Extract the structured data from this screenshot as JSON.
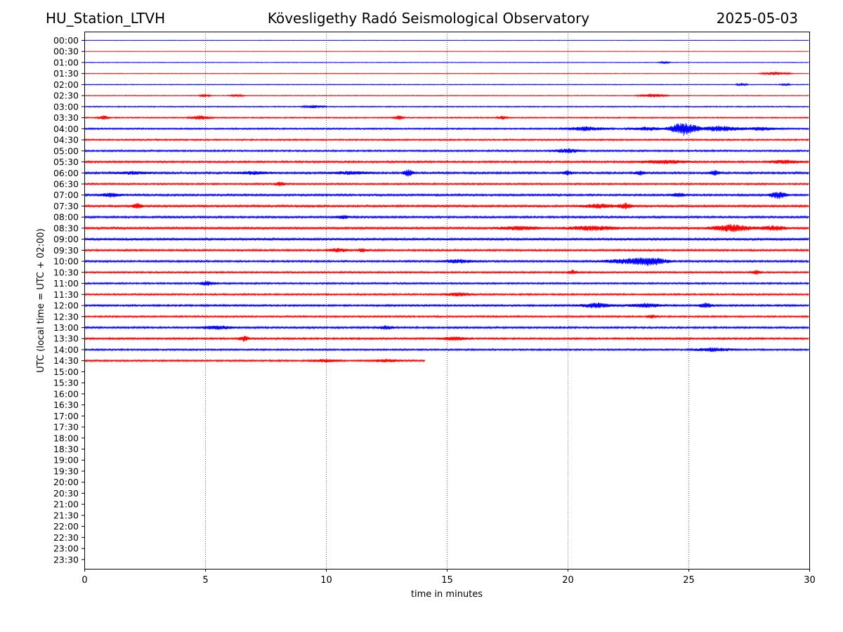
{
  "header": {
    "station": "HU_Station_LTVH",
    "observatory": "Kövesligethy Radó Seismological Observatory",
    "date": "2025-05-03"
  },
  "chart_data": {
    "type": "line",
    "title": "Kövesligethy Radó Seismological Observatory",
    "xlabel": "time in minutes",
    "ylabel": "UTC (local time = UTC + 02:00)",
    "xlim": [
      0,
      30
    ],
    "x_ticks": [
      0,
      5,
      10,
      15,
      20,
      25,
      30
    ],
    "x_tick_labels": [
      "0",
      "5",
      "10",
      "15",
      "20",
      "25",
      "30"
    ],
    "grid": "vertical dotted lines at x ticks",
    "row_labels": [
      "00:00",
      "00:30",
      "01:00",
      "01:30",
      "02:00",
      "02:30",
      "03:00",
      "03:30",
      "04:00",
      "04:30",
      "05:00",
      "05:30",
      "06:00",
      "06:30",
      "07:00",
      "07:30",
      "08:00",
      "08:30",
      "09:00",
      "09:30",
      "10:00",
      "10:30",
      "11:00",
      "11:30",
      "12:00",
      "12:30",
      "13:00",
      "13:30",
      "14:00",
      "14:30",
      "15:00",
      "15:30",
      "16:00",
      "16:30",
      "17:00",
      "17:30",
      "18:00",
      "18:30",
      "19:00",
      "19:30",
      "20:00",
      "20:30",
      "21:00",
      "21:30",
      "22:00",
      "22:30",
      "23:00",
      "23:30"
    ],
    "trace_colors": [
      "#0000ff",
      "#ff0000"
    ],
    "traces": [
      {
        "row": "00:00",
        "duration_min": 30,
        "noise": 0.3,
        "events": []
      },
      {
        "row": "00:30",
        "duration_min": 30,
        "noise": 0.3,
        "events": []
      },
      {
        "row": "01:00",
        "duration_min": 30,
        "noise": 0.4,
        "events": [
          {
            "t": 24.0,
            "amp": 1.5,
            "dur": 0.3
          }
        ]
      },
      {
        "row": "01:30",
        "duration_min": 30,
        "noise": 0.4,
        "events": [
          {
            "t": 28.6,
            "amp": 2.5,
            "dur": 0.8
          }
        ]
      },
      {
        "row": "02:00",
        "duration_min": 30,
        "noise": 0.5,
        "events": [
          {
            "t": 27.2,
            "amp": 2,
            "dur": 0.3
          },
          {
            "t": 29.0,
            "amp": 1.5,
            "dur": 0.3
          }
        ]
      },
      {
        "row": "02:30",
        "duration_min": 30,
        "noise": 0.5,
        "events": [
          {
            "t": 5.0,
            "amp": 2.5,
            "dur": 0.3
          },
          {
            "t": 6.3,
            "amp": 1.5,
            "dur": 0.4
          },
          {
            "t": 23.5,
            "amp": 2.5,
            "dur": 0.8
          }
        ]
      },
      {
        "row": "03:00",
        "duration_min": 30,
        "noise": 0.7,
        "events": [
          {
            "t": 9.5,
            "amp": 2,
            "dur": 0.6
          }
        ]
      },
      {
        "row": "03:30",
        "duration_min": 30,
        "noise": 0.8,
        "events": [
          {
            "t": 0.8,
            "amp": 3,
            "dur": 0.3
          },
          {
            "t": 4.8,
            "amp": 3,
            "dur": 0.6
          },
          {
            "t": 13.0,
            "amp": 3,
            "dur": 0.3
          },
          {
            "t": 17.3,
            "amp": 2.5,
            "dur": 0.3
          }
        ]
      },
      {
        "row": "04:00",
        "duration_min": 30,
        "noise": 1.0,
        "events": [
          {
            "t": 20.8,
            "amp": 3,
            "dur": 1.2
          },
          {
            "t": 23.3,
            "amp": 2.5,
            "dur": 1.0
          },
          {
            "t": 24.8,
            "amp": 10,
            "dur": 0.8
          },
          {
            "t": 26.3,
            "amp": 4,
            "dur": 1.2
          },
          {
            "t": 28.0,
            "amp": 2.5,
            "dur": 1.0
          }
        ]
      },
      {
        "row": "04:30",
        "duration_min": 30,
        "noise": 1.0,
        "events": []
      },
      {
        "row": "05:00",
        "duration_min": 30,
        "noise": 1.1,
        "events": [
          {
            "t": 20.0,
            "amp": 3,
            "dur": 0.8
          }
        ]
      },
      {
        "row": "05:30",
        "duration_min": 30,
        "noise": 1.2,
        "events": [
          {
            "t": 24.0,
            "amp": 2.5,
            "dur": 1.5
          },
          {
            "t": 29.0,
            "amp": 2.5,
            "dur": 1.0
          }
        ]
      },
      {
        "row": "06:00",
        "duration_min": 30,
        "noise": 1.3,
        "events": [
          {
            "t": 2.0,
            "amp": 2,
            "dur": 1.0
          },
          {
            "t": 7.0,
            "amp": 2,
            "dur": 1.0
          },
          {
            "t": 11.0,
            "amp": 2,
            "dur": 1.2
          },
          {
            "t": 13.4,
            "amp": 5,
            "dur": 0.3
          },
          {
            "t": 20.0,
            "amp": 3,
            "dur": 0.3
          },
          {
            "t": 23.0,
            "amp": 3,
            "dur": 0.3
          },
          {
            "t": 26.1,
            "amp": 4,
            "dur": 0.3
          }
        ]
      },
      {
        "row": "06:30",
        "duration_min": 30,
        "noise": 1.1,
        "events": [
          {
            "t": 8.1,
            "amp": 3,
            "dur": 0.3
          }
        ]
      },
      {
        "row": "07:00",
        "duration_min": 30,
        "noise": 1.3,
        "events": [
          {
            "t": 1.1,
            "amp": 3,
            "dur": 0.6
          },
          {
            "t": 24.6,
            "amp": 3,
            "dur": 0.4
          },
          {
            "t": 28.7,
            "amp": 5,
            "dur": 0.5
          }
        ]
      },
      {
        "row": "07:30",
        "duration_min": 30,
        "noise": 1.3,
        "events": [
          {
            "t": 2.2,
            "amp": 4,
            "dur": 0.3
          },
          {
            "t": 21.3,
            "amp": 3,
            "dur": 1.0
          },
          {
            "t": 22.4,
            "amp": 4,
            "dur": 0.4
          }
        ]
      },
      {
        "row": "08:00",
        "duration_min": 30,
        "noise": 1.3,
        "events": [
          {
            "t": 10.7,
            "amp": 2.5,
            "dur": 0.4
          }
        ]
      },
      {
        "row": "08:30",
        "duration_min": 30,
        "noise": 1.5,
        "events": [
          {
            "t": 18.0,
            "amp": 2.5,
            "dur": 1.2
          },
          {
            "t": 21.0,
            "amp": 3,
            "dur": 1.5
          },
          {
            "t": 26.8,
            "amp": 5,
            "dur": 1.2
          },
          {
            "t": 28.5,
            "amp": 3,
            "dur": 0.8
          }
        ]
      },
      {
        "row": "09:00",
        "duration_min": 30,
        "noise": 1.5,
        "events": []
      },
      {
        "row": "09:30",
        "duration_min": 30,
        "noise": 1.2,
        "events": [
          {
            "t": 10.5,
            "amp": 2.5,
            "dur": 0.6
          },
          {
            "t": 11.5,
            "amp": 2.5,
            "dur": 0.3
          }
        ]
      },
      {
        "row": "10:00",
        "duration_min": 30,
        "noise": 1.2,
        "events": [
          {
            "t": 15.5,
            "amp": 2.5,
            "dur": 1.0
          },
          {
            "t": 22.5,
            "amp": 3.5,
            "dur": 1.5
          },
          {
            "t": 23.5,
            "amp": 5,
            "dur": 1.0
          }
        ]
      },
      {
        "row": "10:30",
        "duration_min": 30,
        "noise": 1.1,
        "events": [
          {
            "t": 20.2,
            "amp": 3,
            "dur": 0.3
          },
          {
            "t": 27.8,
            "amp": 3,
            "dur": 0.3
          }
        ]
      },
      {
        "row": "11:00",
        "duration_min": 30,
        "noise": 1.1,
        "events": [
          {
            "t": 5.1,
            "amp": 3,
            "dur": 0.5
          }
        ]
      },
      {
        "row": "11:30",
        "duration_min": 30,
        "noise": 1.1,
        "events": [
          {
            "t": 15.5,
            "amp": 2.5,
            "dur": 0.8
          }
        ]
      },
      {
        "row": "12:00",
        "duration_min": 30,
        "noise": 1.2,
        "events": [
          {
            "t": 21.2,
            "amp": 3.5,
            "dur": 1.0
          },
          {
            "t": 23.2,
            "amp": 3,
            "dur": 1.0
          },
          {
            "t": 25.7,
            "amp": 4,
            "dur": 0.4
          }
        ]
      },
      {
        "row": "12:30",
        "duration_min": 30,
        "noise": 1.1,
        "events": [
          {
            "t": 23.5,
            "amp": 3,
            "dur": 0.3
          }
        ]
      },
      {
        "row": "13:00",
        "duration_min": 30,
        "noise": 1.2,
        "events": [
          {
            "t": 5.5,
            "amp": 2.5,
            "dur": 1.0
          },
          {
            "t": 12.5,
            "amp": 2.5,
            "dur": 0.5
          }
        ]
      },
      {
        "row": "13:30",
        "duration_min": 30,
        "noise": 1.2,
        "events": [
          {
            "t": 6.6,
            "amp": 4,
            "dur": 0.3
          },
          {
            "t": 15.3,
            "amp": 2.5,
            "dur": 0.8
          }
        ]
      },
      {
        "row": "14:00",
        "duration_min": 30,
        "noise": 1.1,
        "events": [
          {
            "t": 26.0,
            "amp": 2.5,
            "dur": 1.2
          }
        ]
      },
      {
        "row": "14:30",
        "duration_min": 14.1,
        "noise": 1.1,
        "events": [
          {
            "t": 10.0,
            "amp": 2,
            "dur": 0.8
          },
          {
            "t": 12.5,
            "amp": 2,
            "dur": 0.8
          }
        ]
      }
    ]
  }
}
